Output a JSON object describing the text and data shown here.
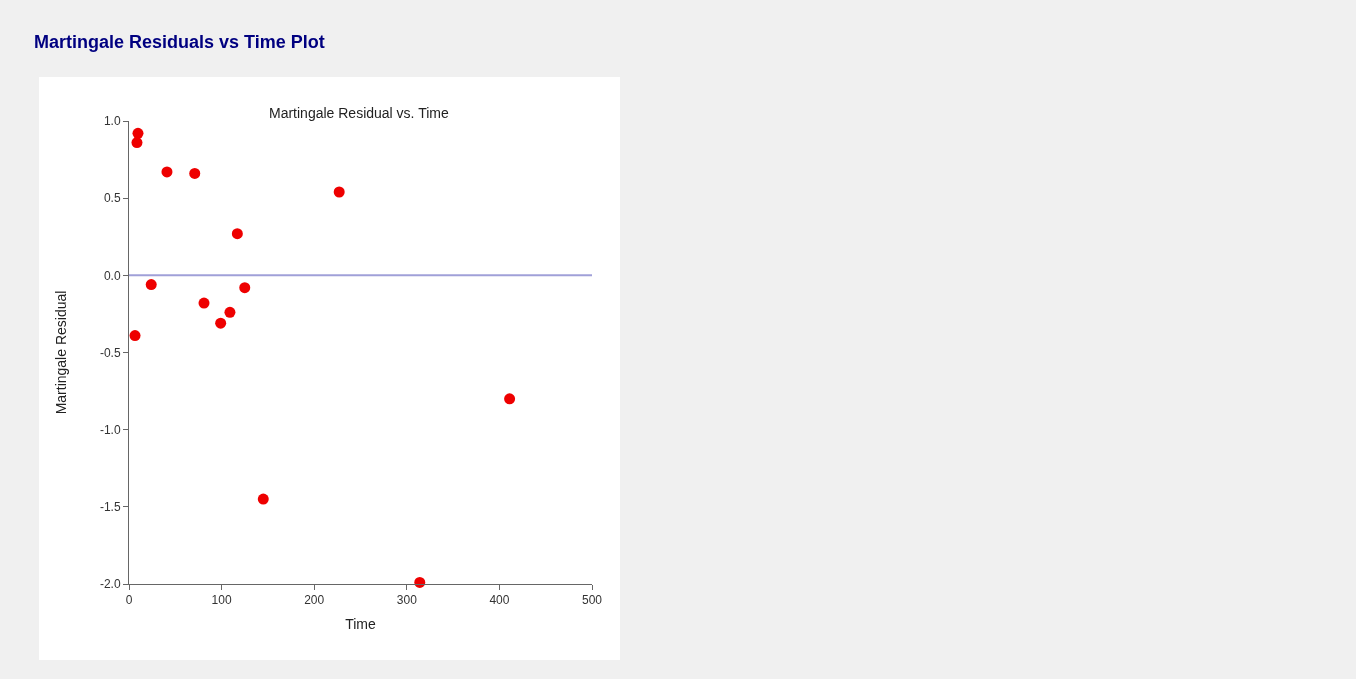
{
  "chart_data": {
    "type": "scatter",
    "title": "Martingale Residuals vs Time Plot",
    "subtitle": "Martingale Residual vs. Time",
    "xlabel": "Time",
    "ylabel": "Martingale Residual",
    "x": [
      6.5,
      8.6,
      9.7,
      24,
      41,
      71,
      81,
      99,
      109,
      117,
      125,
      145,
      227,
      314,
      411
    ],
    "series": [
      {
        "color": "#ee0000",
        "values": [
          -0.39,
          0.86,
          0.92,
          -0.06,
          0.67,
          0.66,
          -0.18,
          -0.31,
          -0.24,
          0.27,
          -0.08,
          -1.45,
          0.54,
          -1.99,
          -0.8
        ]
      }
    ],
    "marker": "circle",
    "grid": false,
    "xlim": [
      0,
      500
    ],
    "xticks": [
      0,
      100,
      200,
      300,
      400,
      500
    ],
    "ylim": [
      -2.0,
      1.0
    ],
    "yticks": [
      {
        "value": -2,
        "label": "-2.0"
      },
      {
        "value": -1.5,
        "label": "-1.5"
      },
      {
        "value": -1,
        "label": "-1.0"
      },
      {
        "value": -0.5,
        "label": "-0.5"
      },
      {
        "value": 0,
        "label": "0.0"
      },
      {
        "value": 0.5,
        "label": "0.5"
      },
      {
        "value": 1,
        "label": "1.0"
      }
    ],
    "ref_lines": [
      {
        "axis": "y",
        "value": 0,
        "color": "#a0a0d8"
      }
    ]
  }
}
